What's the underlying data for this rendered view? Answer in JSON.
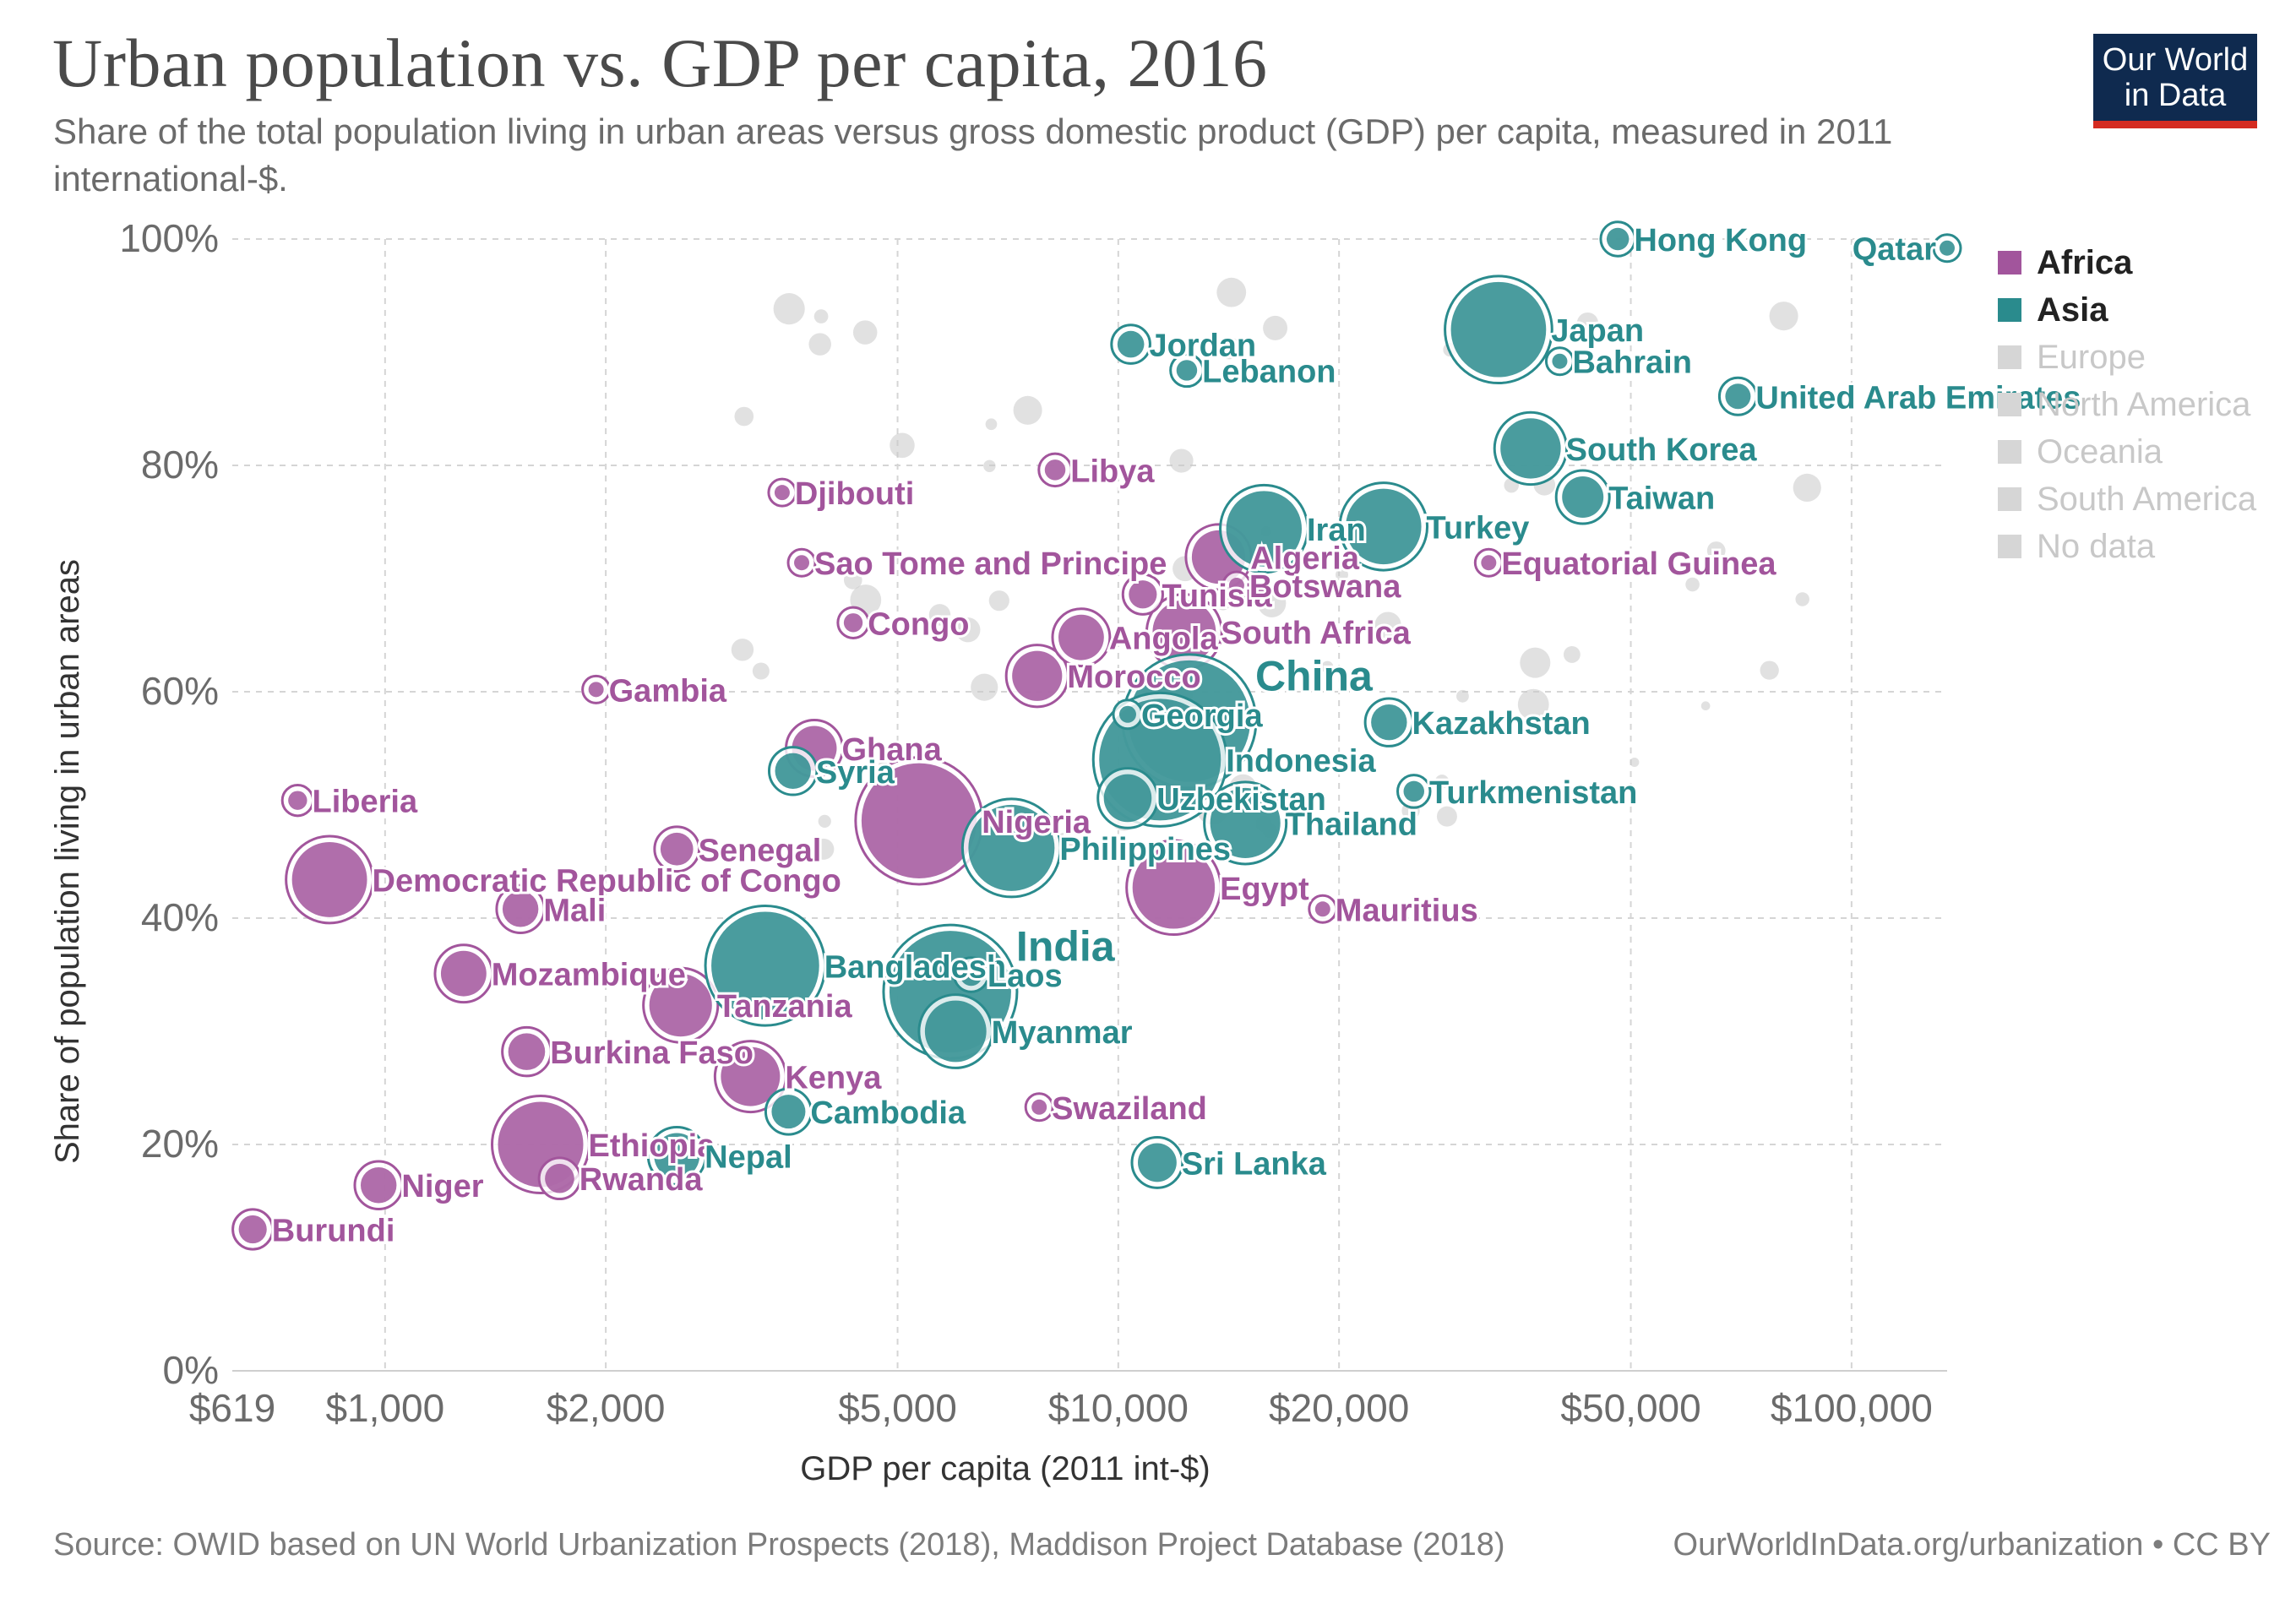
{
  "title": "Urban population vs. GDP per capita, 2016",
  "subtitle": "Share of the total population living in urban areas versus gross domestic product (GDP) per capita, measured in 2011 international-$.",
  "logo": {
    "line1": "Our World",
    "line2": "in Data"
  },
  "colors": {
    "africa": "#a2559c",
    "asia": "#2a8b8d",
    "other": "#c8c8c8",
    "grid": "#d5d5d5",
    "axis": "#555555"
  },
  "legend": [
    {
      "label": "Africa",
      "color": "#a2559c",
      "active": true
    },
    {
      "label": "Asia",
      "color": "#2a8b8d",
      "active": true
    },
    {
      "label": "Europe",
      "color": "#d6d6d6",
      "active": false
    },
    {
      "label": "North America",
      "color": "#d6d6d6",
      "active": false
    },
    {
      "label": "Oceania",
      "color": "#d6d6d6",
      "active": false
    },
    {
      "label": "South America",
      "color": "#d6d6d6",
      "active": false
    },
    {
      "label": "No data",
      "color": "#d6d6d6",
      "active": false
    }
  ],
  "source": "Source: OWID based on UN World Urbanization Prospects (2018), Maddison Project Database (2018)",
  "source_link": "OurWorldInData.org/urbanization • CC BY",
  "chart_data": {
    "type": "scatter",
    "title": "Urban population vs. GDP per capita, 2016",
    "xlabel": "GDP per capita (2011 int-$)",
    "ylabel": "Share of population living in urban areas",
    "x_scale": "log",
    "xlim": [
      619,
      135000
    ],
    "ylim": [
      0,
      100
    ],
    "x_ticks": [
      619,
      1000,
      2000,
      5000,
      10000,
      20000,
      50000,
      100000
    ],
    "x_tick_labels": [
      "$619",
      "$1,000",
      "$2,000",
      "$5,000",
      "$10,000",
      "$20,000",
      "$50,000",
      "$100,000"
    ],
    "y_ticks": [
      0,
      20,
      40,
      60,
      80,
      100
    ],
    "y_tick_labels": [
      "0%",
      "20%",
      "40%",
      "60%",
      "80%",
      "100%"
    ],
    "grid": true,
    "legend_position": "right",
    "series": [
      {
        "name": "Africa",
        "points": [
          {
            "label": "Burundi",
            "x": 660,
            "y": 12.5,
            "size": 11
          },
          {
            "label": "Niger",
            "x": 980,
            "y": 16.4,
            "size": 18
          },
          {
            "label": "Liberia",
            "x": 760,
            "y": 50.4,
            "size": 5
          },
          {
            "label": "Democratic Republic of Congo",
            "x": 840,
            "y": 43.4,
            "size": 79
          },
          {
            "label": "Mali",
            "x": 1530,
            "y": 40.8,
            "size": 18
          },
          {
            "label": "Mozambique",
            "x": 1280,
            "y": 35.1,
            "size": 29
          },
          {
            "label": "Burkina Faso",
            "x": 1560,
            "y": 28.2,
            "size": 19
          },
          {
            "label": "Ethiopia",
            "x": 1630,
            "y": 20.0,
            "size": 102
          },
          {
            "label": "Rwanda",
            "x": 1730,
            "y": 17.0,
            "size": 12
          },
          {
            "label": "Gambia",
            "x": 1940,
            "y": 60.2,
            "size": 2
          },
          {
            "label": "Senegal",
            "x": 2500,
            "y": 46.1,
            "size": 15
          },
          {
            "label": "Tanzania",
            "x": 2530,
            "y": 32.3,
            "size": 55
          },
          {
            "label": "Kenya",
            "x": 3150,
            "y": 26.0,
            "size": 49
          },
          {
            "label": "Ghana",
            "x": 3850,
            "y": 55.0,
            "size": 28
          },
          {
            "label": "Nigeria",
            "x": 5350,
            "y": 48.6,
            "size": 186
          },
          {
            "label": "Congo",
            "x": 4350,
            "y": 66.1,
            "size": 5
          },
          {
            "label": "Sao Tome and Principe",
            "x": 3700,
            "y": 71.4,
            "size": 1
          },
          {
            "label": "Djibouti",
            "x": 3480,
            "y": 77.6,
            "size": 1
          },
          {
            "label": "Libya",
            "x": 8200,
            "y": 79.6,
            "size": 6
          },
          {
            "label": "Algeria",
            "x": 13700,
            "y": 71.9,
            "size": 40
          },
          {
            "label": "Tunisia",
            "x": 10800,
            "y": 68.6,
            "size": 11
          },
          {
            "label": "Botswana",
            "x": 14500,
            "y": 69.4,
            "size": 2
          },
          {
            "label": "South Africa",
            "x": 12300,
            "y": 65.3,
            "size": 56
          },
          {
            "label": "Angola",
            "x": 8900,
            "y": 64.8,
            "size": 29
          },
          {
            "label": "Morocco",
            "x": 7750,
            "y": 61.4,
            "size": 35
          },
          {
            "label": "Egypt",
            "x": 11900,
            "y": 42.7,
            "size": 95
          },
          {
            "label": "Mauritius",
            "x": 19000,
            "y": 40.8,
            "size": 1
          },
          {
            "label": "Swaziland",
            "x": 7800,
            "y": 23.3,
            "size": 1
          },
          {
            "label": "Equatorial Guinea",
            "x": 32000,
            "y": 71.4,
            "size": 1
          }
        ]
      },
      {
        "name": "Asia",
        "points": [
          {
            "label": "Hong Kong",
            "x": 48000,
            "y": 100,
            "size": 7
          },
          {
            "label": "Qatar",
            "x": 135000,
            "y": 99.2,
            "size": 3
          },
          {
            "label": "Japan",
            "x": 33000,
            "y": 92.0,
            "size": 127
          },
          {
            "label": "Bahrain",
            "x": 40000,
            "y": 89.2,
            "size": 1
          },
          {
            "label": "United Arab Emirates",
            "x": 70000,
            "y": 86.1,
            "size": 9
          },
          {
            "label": "South Korea",
            "x": 36500,
            "y": 81.5,
            "size": 51
          },
          {
            "label": "Taiwan",
            "x": 43000,
            "y": 77.2,
            "size": 24
          },
          {
            "label": "Jordan",
            "x": 10400,
            "y": 90.7,
            "size": 10
          },
          {
            "label": "Lebanon",
            "x": 12400,
            "y": 88.4,
            "size": 6
          },
          {
            "label": "Iran",
            "x": 15800,
            "y": 74.4,
            "size": 80
          },
          {
            "label": "Turkey",
            "x": 23000,
            "y": 74.6,
            "size": 80
          },
          {
            "label": "Kazakhstan",
            "x": 23400,
            "y": 57.3,
            "size": 18
          },
          {
            "label": "Turkmenistan",
            "x": 25300,
            "y": 51.2,
            "size": 6
          },
          {
            "label": "China",
            "x": 12500,
            "y": 57.4,
            "size": 1380
          },
          {
            "label": "Georgia",
            "x": 10300,
            "y": 58.0,
            "size": 4
          },
          {
            "label": "Indonesia",
            "x": 11400,
            "y": 54.0,
            "size": 261
          },
          {
            "label": "Uzbekistan",
            "x": 10300,
            "y": 50.6,
            "size": 32
          },
          {
            "label": "Thailand",
            "x": 14900,
            "y": 48.4,
            "size": 69
          },
          {
            "label": "Philippines",
            "x": 7150,
            "y": 46.2,
            "size": 104
          },
          {
            "label": "Syria",
            "x": 3600,
            "y": 53.0,
            "size": 18
          },
          {
            "label": "Bangladesh",
            "x": 3300,
            "y": 35.8,
            "size": 163
          },
          {
            "label": "India",
            "x": 5900,
            "y": 33.5,
            "size": 1324
          },
          {
            "label": "Laos",
            "x": 6300,
            "y": 35.0,
            "size": 7
          },
          {
            "label": "Myanmar",
            "x": 6000,
            "y": 30.0,
            "size": 53
          },
          {
            "label": "Cambodia",
            "x": 3550,
            "y": 22.9,
            "size": 16
          },
          {
            "label": "Nepal",
            "x": 2500,
            "y": 19.0,
            "size": 29
          },
          {
            "label": "Sri Lanka",
            "x": 11300,
            "y": 18.4,
            "size": 21
          }
        ]
      }
    ]
  }
}
